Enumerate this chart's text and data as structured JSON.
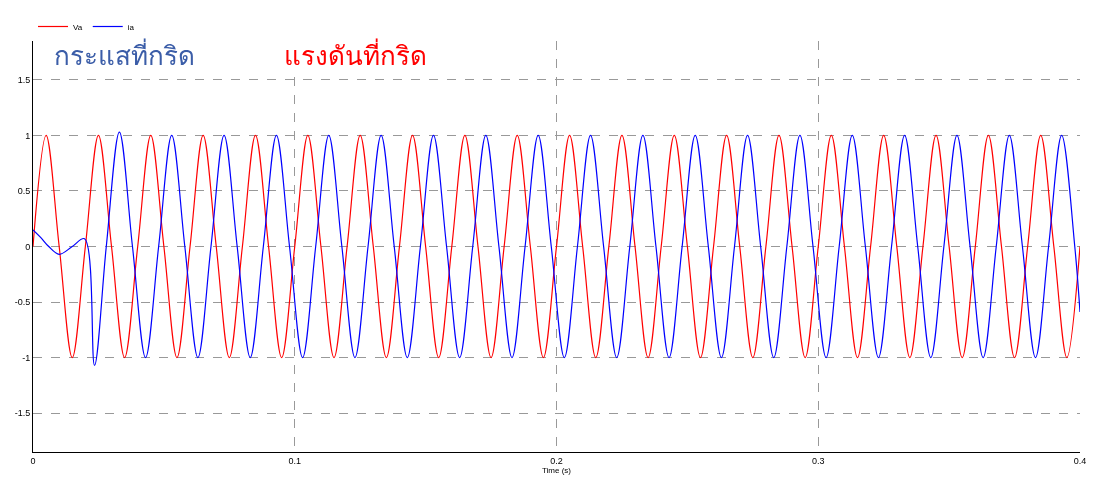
{
  "chart_data": {
    "type": "line",
    "xlabel": "Time (s)",
    "annotations": [
      "กระแสที่กริด",
      "แรงดันที่กริด"
    ],
    "xlim": [
      0,
      0.4
    ],
    "xticks": [
      0,
      0.1,
      0.2,
      0.3,
      0.4
    ],
    "ylim": [
      -1.85,
      1.85
    ],
    "yticks": [
      -1.5,
      -1,
      -0.5,
      0,
      0.5,
      1,
      1.5
    ],
    "grid": true,
    "legend": "top left",
    "marker": "none",
    "line_style": "solid",
    "series": [
      {
        "name": "Va",
        "color": "#ff0000",
        "x": [
          0,
          0.005,
          0.01,
          0.015,
          0.02,
          0.025,
          0.03,
          0.035,
          0.04,
          0.045,
          0.05,
          0.055,
          0.06,
          0.065,
          0.07,
          0.075,
          0.08,
          0.085,
          0.09,
          0.095,
          0.1,
          0.105,
          0.11,
          0.115,
          0.12,
          0.125,
          0.13,
          0.135,
          0.14,
          0.145,
          0.15,
          0.155,
          0.16,
          0.165,
          0.17,
          0.175,
          0.18,
          0.185,
          0.19,
          0.195,
          0.2,
          0.205,
          0.21,
          0.215,
          0.22,
          0.225,
          0.23,
          0.235,
          0.24,
          0.245,
          0.25,
          0.255,
          0.26,
          0.265,
          0.27,
          0.275,
          0.28,
          0.285,
          0.29,
          0.295,
          0.3,
          0.305,
          0.31,
          0.315,
          0.32,
          0.325,
          0.33,
          0.335,
          0.34,
          0.345,
          0.35,
          0.355,
          0.36,
          0.365,
          0.37,
          0.375,
          0.38,
          0.385,
          0.39,
          0.395,
          0.4
        ],
        "values": [
          0,
          1,
          0,
          -1,
          0,
          1,
          0,
          -1,
          0,
          1,
          0,
          -1,
          0,
          1,
          0,
          -1,
          0,
          1,
          0,
          -1,
          0,
          1,
          0,
          -1,
          0,
          1,
          0,
          -1,
          0,
          1,
          0,
          -1,
          0,
          1,
          0,
          -1,
          0,
          1,
          0,
          -1,
          0,
          1,
          0,
          -1,
          0,
          1,
          0,
          -1,
          0,
          1,
          0,
          -1,
          0,
          1,
          0,
          -1,
          0,
          1,
          0,
          -1,
          0,
          1,
          0,
          -1,
          0,
          1,
          0,
          -1,
          0,
          1,
          0,
          -1,
          0,
          1,
          0,
          -1,
          0,
          1,
          0,
          -1,
          0
        ]
      },
      {
        "name": "ia",
        "color": "#0000ff",
        "x": [
          0,
          0.003,
          0.006,
          0.01,
          0.015,
          0.0197,
          0.0235,
          0.028,
          0.033,
          0.038,
          0.043,
          0.048,
          0.053,
          0.058,
          0.063,
          0.068,
          0.073,
          0.078,
          0.083,
          0.088,
          0.093,
          0.098,
          0.103,
          0.108,
          0.113,
          0.118,
          0.123,
          0.128,
          0.133,
          0.138,
          0.143,
          0.148,
          0.153,
          0.158,
          0.163,
          0.168,
          0.173,
          0.178,
          0.183,
          0.188,
          0.193,
          0.198,
          0.203,
          0.208,
          0.213,
          0.218,
          0.223,
          0.228,
          0.233,
          0.238,
          0.243,
          0.248,
          0.253,
          0.258,
          0.263,
          0.268,
          0.273,
          0.278,
          0.283,
          0.288,
          0.293,
          0.298,
          0.303,
          0.308,
          0.313,
          0.318,
          0.323,
          0.328,
          0.333,
          0.338,
          0.343,
          0.348,
          0.353,
          0.358,
          0.363,
          0.368,
          0.373,
          0.378,
          0.383,
          0.388,
          0.393,
          0.398,
          0.4
        ],
        "values": [
          0.15,
          0.08,
          0,
          -0.07,
          0,
          0.07,
          -1.07,
          0,
          1.03,
          0,
          -1,
          0,
          1,
          0,
          -1,
          0,
          1,
          0,
          -1,
          0,
          1,
          0,
          -1,
          0,
          1,
          0,
          -1,
          0,
          1,
          0,
          -1,
          0,
          1,
          0,
          -1,
          0,
          1,
          0,
          -1,
          0,
          1,
          0,
          -1,
          0,
          1,
          0,
          -1,
          0,
          1,
          0,
          -1,
          0,
          1,
          0,
          -1,
          0,
          1,
          0,
          -1,
          0,
          1,
          0,
          -1,
          0,
          1,
          0,
          -1,
          0,
          1,
          0,
          -1,
          0,
          1,
          0,
          -1,
          0,
          1,
          0,
          -1,
          0,
          1,
          0,
          -0.59
        ]
      }
    ]
  }
}
